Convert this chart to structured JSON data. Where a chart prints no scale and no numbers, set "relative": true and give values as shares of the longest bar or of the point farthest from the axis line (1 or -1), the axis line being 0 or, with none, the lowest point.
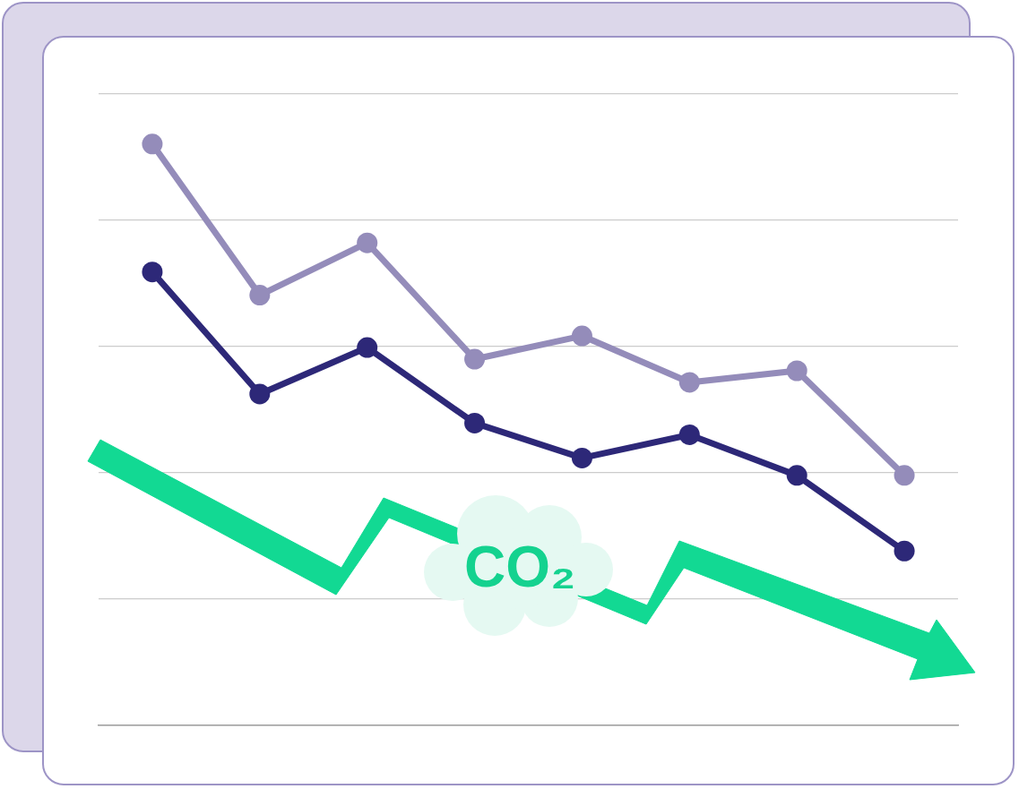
{
  "chart_data": {
    "type": "line",
    "relative": true,
    "categories": [
      null,
      null,
      null,
      null,
      null,
      null,
      null,
      null
    ],
    "series": [
      {
        "color": "#948cba",
        "values": [
          1,
          0.74,
          0.83,
          0.63,
          0.67,
          0.59,
          0.61,
          0.43
        ]
      },
      {
        "color": "#2d2878",
        "values": [
          0.78,
          0.57,
          0.65,
          0.52,
          0.46,
          0.5,
          0.43,
          0.3
        ]
      }
    ],
    "marker": "circle",
    "line_style": "solid",
    "grid": "y",
    "legend": false,
    "tick_labels": false,
    "annotations": [
      "CO₂"
    ]
  }
}
